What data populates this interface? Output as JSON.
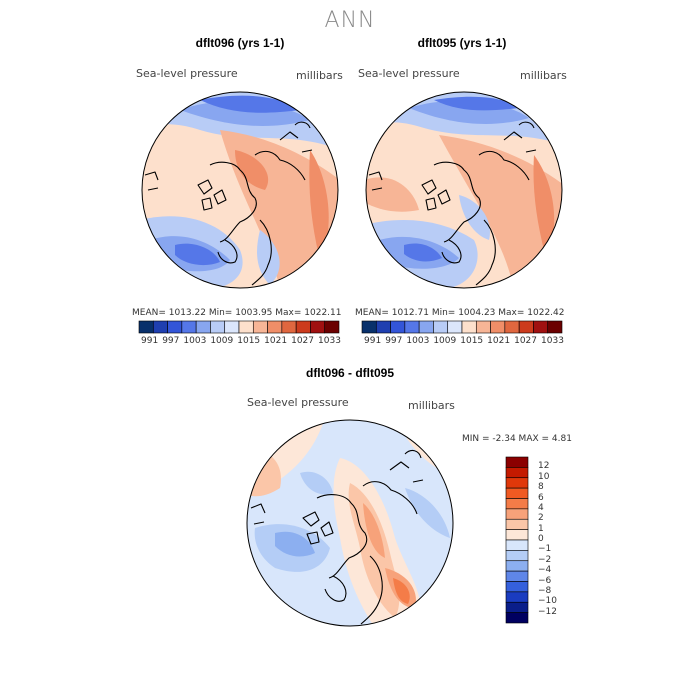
{
  "title": "ANN",
  "panels": [
    {
      "title": "dflt096 (yrs 1-1)",
      "variable_label": "Sea-level pressure",
      "units_label": "millibars",
      "stats_text": "MEAN= 1013.22 Min= 1003.95 Max= 1022.11"
    },
    {
      "title": "dflt095 (yrs 1-1)",
      "variable_label": "Sea-level pressure",
      "units_label": "millibars",
      "stats_text": "MEAN= 1012.71 Min= 1004.23 Max= 1022.42"
    }
  ],
  "absolute_colorbar": {
    "tick_labels": [
      "991",
      "997",
      "1003",
      "1009",
      "1015",
      "1021",
      "1027",
      "1033"
    ],
    "colors": [
      "#08306b",
      "#1f3fb0",
      "#3355d8",
      "#5577e8",
      "#88a6f0",
      "#b8ccf6",
      "#dbe6fb",
      "#fde0cc",
      "#f7b596",
      "#f08e68",
      "#e0673f",
      "#cc3b1d",
      "#a01010",
      "#6b0000"
    ]
  },
  "difference_panel": {
    "title": "dflt096 - dflt095",
    "variable_label": "Sea-level pressure",
    "units_label": "millibars",
    "min_max_text": "MIN = -2.34 MAX = 4.81"
  },
  "difference_colorbar": {
    "tick_labels": [
      "12",
      "10",
      "8",
      "6",
      "4",
      "2",
      "1",
      "0",
      "−1",
      "−2",
      "−4",
      "−6",
      "−8",
      "−10",
      "−12"
    ],
    "colors": [
      "#8b0000",
      "#c41a00",
      "#e0380a",
      "#f05a22",
      "#f47c48",
      "#f7a27a",
      "#fbc6a8",
      "#fde7d8",
      "#d8e6fb",
      "#b4cdf6",
      "#8caff0",
      "#5f86e8",
      "#3560dc",
      "#1a3cc0",
      "#0a1e8a",
      "#000060"
    ]
  },
  "colors": {
    "title_gray": "#8a8a8a",
    "positive": "#e8704a",
    "negative": "#6f93e6"
  }
}
